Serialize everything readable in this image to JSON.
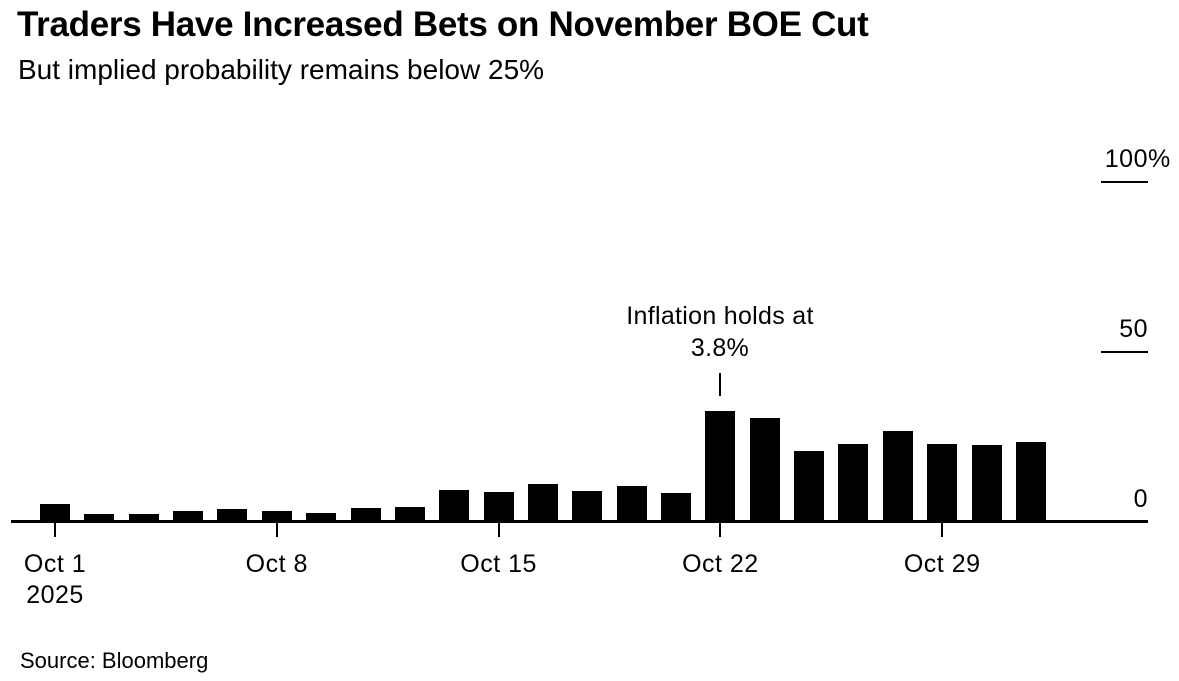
{
  "header": {
    "title": "Traders Have Increased Bets on November BOE Cut",
    "subtitle": "But implied probability remains below 25%"
  },
  "footer": {
    "source": "Source: Bloomberg"
  },
  "colors": {
    "bar": "#000000",
    "text": "#000000",
    "axis": "#000000",
    "background": "#ffffff"
  },
  "chart_data": {
    "type": "bar",
    "title": "Traders Have Increased Bets on November BOE Cut",
    "subtitle": "But implied probability remains below 25%",
    "unit": "%",
    "ylim": [
      0,
      100
    ],
    "grid": false,
    "legend": false,
    "x": [
      "Oct 1",
      "Oct 2",
      "Oct 3",
      "Oct 6",
      "Oct 7",
      "Oct 8",
      "Oct 9",
      "Oct 10",
      "Oct 13",
      "Oct 14",
      "Oct 15",
      "Oct 16",
      "Oct 17",
      "Oct 20",
      "Oct 21",
      "Oct 22",
      "Oct 23",
      "Oct 24",
      "Oct 27",
      "Oct 28",
      "Oct 29",
      "Oct 30",
      "Oct 31"
    ],
    "values": [
      5.1,
      2.2,
      2.1,
      2.9,
      3.4,
      2.9,
      2.4,
      3.7,
      4.0,
      9.0,
      8.6,
      10.9,
      8.8,
      10.4,
      8.2,
      32.3,
      30.2,
      20.6,
      22.6,
      26.5,
      22.6,
      22.4,
      23.2
    ],
    "xticks": [
      {
        "label": "Oct 1",
        "sublabel": "2025",
        "index": 0
      },
      {
        "label": "Oct 8",
        "index": 5
      },
      {
        "label": "Oct 15",
        "index": 10
      },
      {
        "label": "Oct 22",
        "index": 15
      },
      {
        "label": "Oct 29",
        "index": 20
      }
    ],
    "yticks": [
      {
        "label": "100",
        "unit": "%",
        "value": 100,
        "tick_line": true
      },
      {
        "label": "50",
        "value": 50,
        "tick_line": true
      },
      {
        "label": "0",
        "value": 0,
        "tick_line": false
      }
    ],
    "annotation": {
      "line1": "Inflation holds at",
      "line2": "3.8%",
      "target_label": "Oct 22",
      "index": 15
    }
  }
}
